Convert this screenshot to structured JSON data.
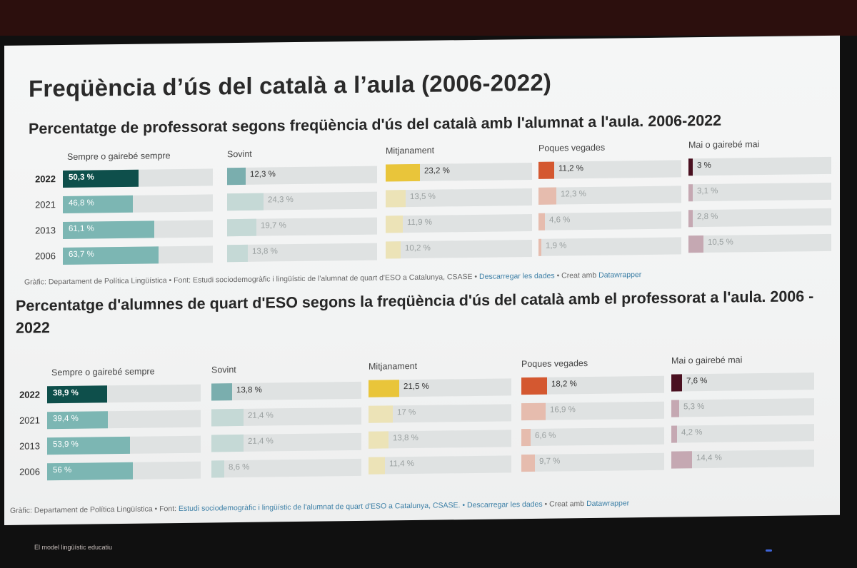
{
  "slide": {
    "title": "Freqüència d’ús del català a l’aula (2006-2022)",
    "footer": "El model lingüístic educatiu"
  },
  "charts": {
    "c1": {
      "title": "Percentatge de professorat segons freqüència d'ús del català amb l'alumnat a l'aula. 2006-2022",
      "footnote": {
        "prefix": "Gràfic: Departament de Política Lingüística • Font: Estudi sociodemogràfic i lingüístic de l'alumnat de quart d'ESO a Catalunya, CSASE •",
        "download": "Descarregar les dades",
        "sep": "• Creat amb",
        "tool": "Datawrapper"
      }
    },
    "c2": {
      "title": "Percentatge d'alumnes de quart d'ESO segons la freqüència d'ús del català amb el professorat a l'aula. 2006 - 2022",
      "footnote": {
        "prefix": "Gràfic: Departament de Política Lingüística • Font:",
        "source": "Estudi sociodemogràfic i lingüístic de l'alumnat de quart d'ESO a Catalunya, CSASE.",
        "download": "• Descarregar les dades",
        "sep": "• Creat amb",
        "tool": "Datawrapper"
      }
    }
  },
  "colors": {
    "sempre": [
      "#0e4f4b",
      "#7cb6b3",
      "#7cb6b3",
      "#7cb6b3"
    ],
    "sovint": [
      "#7aaeae",
      "#c5d9d6",
      "#c5d9d6",
      "#c5d9d6"
    ],
    "mitjanament": [
      "#e9c53a",
      "#ece3b7",
      "#ece3b7",
      "#ece3b7"
    ],
    "poques": [
      "#d45830",
      "#e6bcae",
      "#e6bcae",
      "#e6bcae"
    ],
    "mai": [
      "#4a1020",
      "#c5a8b2",
      "#c5a8b2",
      "#c5a8b2"
    ],
    "track": "#dfe2e2"
  },
  "chart_data": [
    {
      "type": "bar",
      "title": "Percentatge de professorat segons freqüència d'ús del català amb l'alumnat a l'aula. 2006-2022",
      "categories": [
        "2022",
        "2021",
        "2013",
        "2006"
      ],
      "xlim": [
        0,
        100
      ],
      "series": [
        {
          "name": "Sempre o gairebé sempre",
          "values": [
            50.3,
            46.8,
            61.1,
            63.7
          ],
          "labels": [
            "50,3 %",
            "46,8 %",
            "61,1 %",
            "63,7 %"
          ]
        },
        {
          "name": "Sovint",
          "values": [
            12.3,
            24.3,
            19.7,
            13.8
          ],
          "labels": [
            "12,3 %",
            "24,3 %",
            "19,7 %",
            "13,8 %"
          ]
        },
        {
          "name": "Mitjanament",
          "values": [
            23.2,
            13.5,
            11.9,
            10.2
          ],
          "labels": [
            "23,2 %",
            "13,5 %",
            "11,9 %",
            "10,2 %"
          ]
        },
        {
          "name": "Poques vegades",
          "values": [
            11.2,
            12.3,
            4.6,
            1.9
          ],
          "labels": [
            "11,2 %",
            "12,3 %",
            "4,6 %",
            "1,9 %"
          ]
        },
        {
          "name": "Mai o gairebé mai",
          "values": [
            3,
            3.1,
            2.8,
            10.5
          ],
          "labels": [
            "3 %",
            "3,1 %",
            "2,8 %",
            "10,5 %"
          ]
        }
      ]
    },
    {
      "type": "bar",
      "title": "Percentatge d'alumnes de quart d'ESO segons la freqüència d'ús del català amb el professorat a l'aula. 2006 - 2022",
      "categories": [
        "2022",
        "2021",
        "2013",
        "2006"
      ],
      "xlim": [
        0,
        100
      ],
      "series": [
        {
          "name": "Sempre o gairebé sempre",
          "values": [
            38.9,
            39.4,
            53.9,
            56
          ],
          "labels": [
            "38,9 %",
            "39,4 %",
            "53,9 %",
            "56 %"
          ]
        },
        {
          "name": "Sovint",
          "values": [
            13.8,
            21.4,
            21.4,
            8.6
          ],
          "labels": [
            "13,8 %",
            "21,4 %",
            "21,4 %",
            "8,6 %"
          ]
        },
        {
          "name": "Mitjanament",
          "values": [
            21.5,
            17,
            13.8,
            11.4
          ],
          "labels": [
            "21,5 %",
            "17 %",
            "13,8 %",
            "11,4 %"
          ]
        },
        {
          "name": "Poques vegades",
          "values": [
            18.2,
            16.9,
            6.6,
            9.7
          ],
          "labels": [
            "18,2 %",
            "16,9 %",
            "6,6 %",
            "9,7 %"
          ]
        },
        {
          "name": "Mai o gairebé mai",
          "values": [
            7.6,
            5.3,
            4.2,
            14.4
          ],
          "labels": [
            "7,6 %",
            "5,3 %",
            "4,2 %",
            "14,4 %"
          ]
        }
      ]
    }
  ]
}
